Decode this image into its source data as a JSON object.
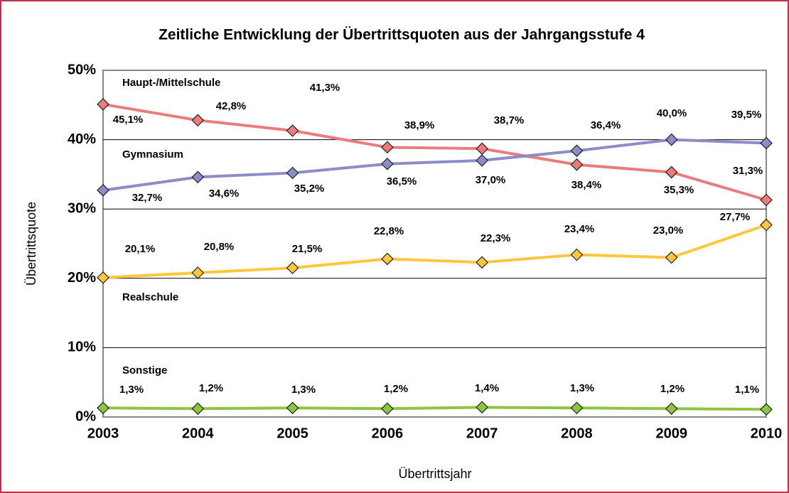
{
  "chart_data": {
    "type": "line",
    "title": "Zeitliche Entwicklung der Übertrittsquoten aus der Jahrgangsstufe  4",
    "x_label": "Übertrittsjahr",
    "y_label": "Übertrittsquote",
    "x": [
      2003,
      2004,
      2005,
      2006,
      2007,
      2008,
      2009,
      2010
    ],
    "xlim": [
      2003,
      2010
    ],
    "xticks": [
      2003,
      2004,
      2005,
      2006,
      2007,
      2008,
      2009,
      2010
    ],
    "ylim": [
      0,
      50
    ],
    "yticks": [
      {
        "value": 0,
        "label": "0%"
      },
      {
        "value": 10,
        "label": "10%"
      },
      {
        "value": 20,
        "label": "20%"
      },
      {
        "value": 30,
        "label": "30%"
      },
      {
        "value": 40,
        "label": "40%"
      },
      {
        "value": 50,
        "label": "50%"
      }
    ],
    "grid": true,
    "series": [
      {
        "name": "Haupt-/Mittelschule",
        "color": "#ec7c7c",
        "values": [
          45.1,
          42.8,
          41.3,
          38.9,
          38.7,
          36.4,
          35.3,
          31.3
        ],
        "value_labels": [
          "45,1%",
          "42,8%",
          "41,3%",
          "38,9%",
          "38,7%",
          "36,4%",
          "35,3%",
          "31,3%"
        ]
      },
      {
        "name": "Gymnasium",
        "color": "#8c8cc8",
        "values": [
          32.7,
          34.6,
          35.2,
          36.5,
          37.0,
          38.4,
          40.0,
          39.5
        ],
        "value_labels": [
          "32,7%",
          "34,6%",
          "35,2%",
          "36,5%",
          "37,0%",
          "38,4%",
          "40,0%",
          "39,5%"
        ]
      },
      {
        "name": "Realschule",
        "color": "#ffc83c",
        "values": [
          20.1,
          20.8,
          21.5,
          22.8,
          22.3,
          23.4,
          23.0,
          27.7
        ],
        "value_labels": [
          "20,1%",
          "20,8%",
          "21,5%",
          "22,8%",
          "22,3%",
          "23,4%",
          "23,0%",
          "27,7%"
        ]
      },
      {
        "name": "Sonstige",
        "color": "#8cc63f",
        "values": [
          1.3,
          1.2,
          1.3,
          1.2,
          1.4,
          1.3,
          1.2,
          1.1
        ],
        "value_labels": [
          "1,3%",
          "1,2%",
          "1,3%",
          "1,2%",
          "1,4%",
          "1,3%",
          "1,2%",
          "1,1%"
        ]
      }
    ]
  }
}
